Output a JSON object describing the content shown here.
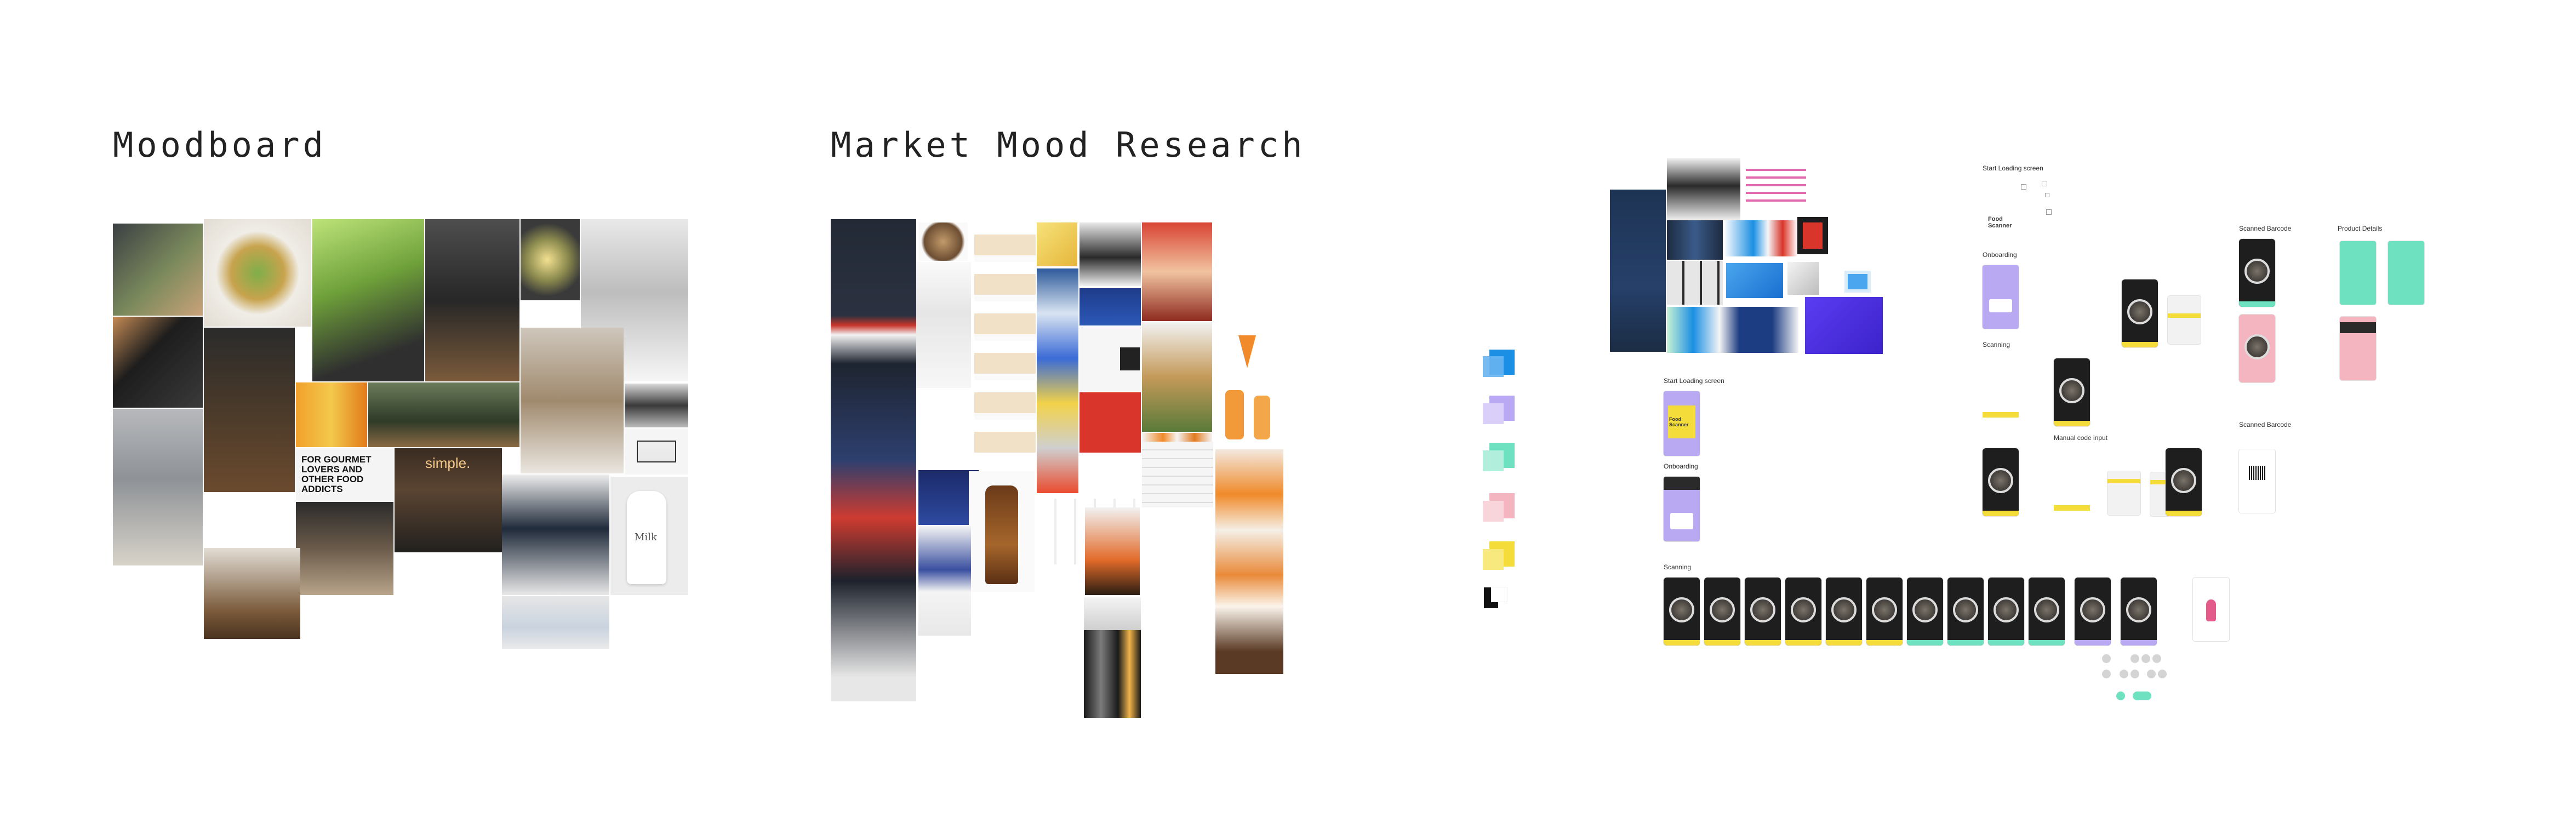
{
  "sections": {
    "moodboard_title": "Moodboard",
    "market_title": "Market Mood Research"
  },
  "moodboard": {
    "gourmet_sign": "FOR GOURMET LOVERS AND OTHER FOOD ADDICTS",
    "shop_sign": "simple.",
    "milk_label": "Milk"
  },
  "flow": {
    "start_loading_1": "Start Loading screen",
    "onboarding_1": "Onboarding",
    "start_loading_2": "Start Loading screen",
    "onboarding_2": "Onboarding",
    "scanning_1": "Scanning",
    "manual_code_input": "Manual code input",
    "scanned_barcode_1": "Scanned Barcode",
    "product_details": "Product Details",
    "scanned_barcode_2": "Scanned Barcode",
    "scanning_bottom": "Scanning",
    "start_screen_text": "Food Scanner"
  },
  "colors": {
    "swatches": [
      "#1a8fe3",
      "#b9a9f2",
      "#6ee1c0",
      "#f4b4c0",
      "#f4dd3b",
      "#111111"
    ]
  }
}
